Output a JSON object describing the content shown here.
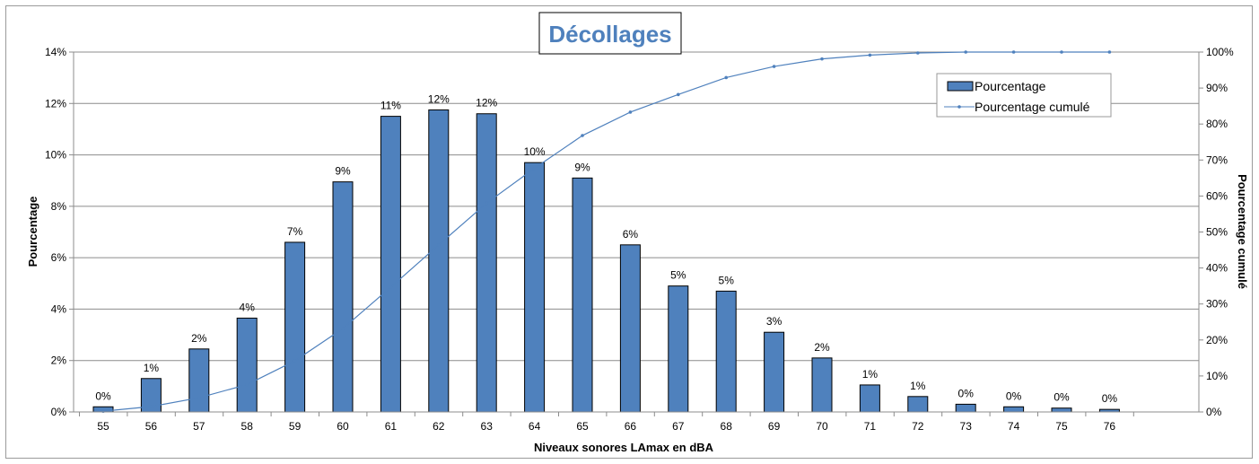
{
  "chart_data": {
    "type": "bar",
    "title": "Décollages",
    "xlabel": "Niveaux sonores LAmax en dBA",
    "ylabel": "Pourcentage",
    "y2label": "Pourcentage cumulé",
    "categories": [
      "55",
      "56",
      "57",
      "58",
      "59",
      "60",
      "61",
      "62",
      "63",
      "64",
      "65",
      "66",
      "67",
      "68",
      "69",
      "70",
      "71",
      "72",
      "73",
      "74",
      "75",
      "76"
    ],
    "series": [
      {
        "name": "Pourcentage",
        "kind": "bar",
        "axis": "left",
        "color": "#4f81bd",
        "values": [
          0.2,
          1.3,
          2.45,
          3.65,
          6.6,
          8.95,
          11.5,
          11.75,
          11.6,
          9.7,
          9.1,
          6.5,
          4.9,
          4.7,
          3.1,
          2.1,
          1.05,
          0.6,
          0.3,
          0.2,
          0.15,
          0.1
        ],
        "labels": [
          "0%",
          "1%",
          "2%",
          "4%",
          "7%",
          "9%",
          "11%",
          "12%",
          "12%",
          "10%",
          "9%",
          "6%",
          "5%",
          "5%",
          "3%",
          "2%",
          "1%",
          "1%",
          "0%",
          "0%",
          "0%",
          "0%"
        ]
      },
      {
        "name": "Pourcentage cumulé",
        "kind": "line",
        "axis": "right",
        "color": "#4f81bd",
        "values": [
          0.2,
          1.5,
          3.95,
          7.6,
          14.2,
          23.15,
          34.65,
          46.4,
          58.0,
          67.7,
          76.8,
          83.3,
          88.2,
          92.9,
          96.0,
          98.1,
          99.15,
          99.75,
          100,
          100,
          100,
          100
        ]
      }
    ],
    "ylim": [
      0,
      14
    ],
    "yticks": [
      "0%",
      "2%",
      "4%",
      "6%",
      "8%",
      "10%",
      "12%",
      "14%"
    ],
    "y2lim": [
      0,
      100
    ],
    "y2ticks": [
      "0%",
      "10%",
      "20%",
      "30%",
      "40%",
      "50%",
      "60%",
      "70%",
      "80%",
      "90%",
      "100%"
    ],
    "grid": true,
    "legend": "top-right"
  }
}
